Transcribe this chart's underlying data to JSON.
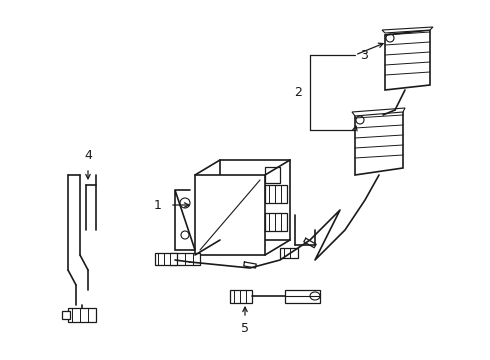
{
  "background_color": "#ffffff",
  "line_color": "#1a1a1a",
  "label_color": "#000000",
  "fig_width": 4.9,
  "fig_height": 3.6,
  "dpi": 100,
  "xlim": [
    0,
    490
  ],
  "ylim": [
    0,
    360
  ]
}
